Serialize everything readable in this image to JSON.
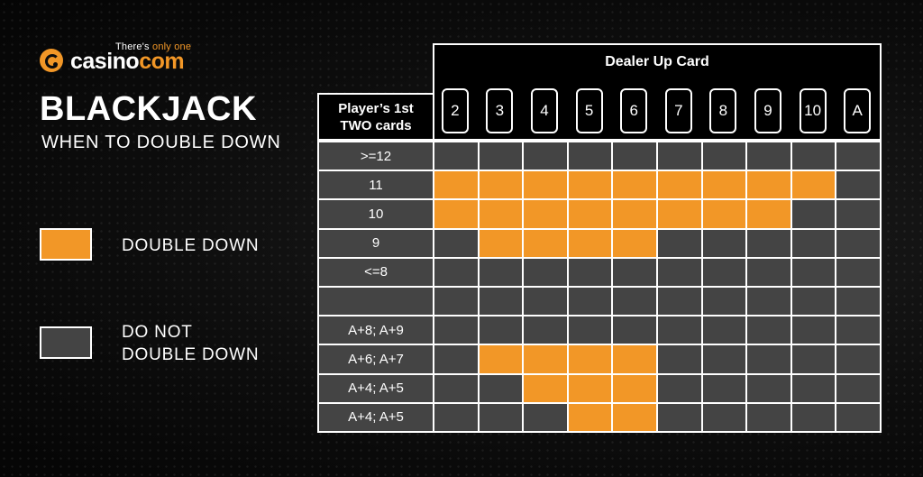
{
  "logo": {
    "tagline_prefix": "There's ",
    "tagline_highlight": "only one",
    "word_1": "casino",
    "word_2": "com"
  },
  "title": "BLACKJACK",
  "subtitle": "WHEN TO DOUBLE DOWN",
  "legend": {
    "double": "DOUBLE DOWN",
    "no_double_line1": "DO NOT",
    "no_double_line2": "DOUBLE DOWN"
  },
  "table": {
    "dealer_header": "Dealer Up Card",
    "player_header_line1": "Player’s 1st",
    "player_header_line2": "TWO cards",
    "dealer_cards": [
      "2",
      "3",
      "4",
      "5",
      "6",
      "7",
      "8",
      "9",
      "10",
      "A"
    ],
    "rows": [
      {
        "label": ">=12",
        "cells": [
          "N",
          "N",
          "N",
          "N",
          "N",
          "N",
          "N",
          "N",
          "N",
          "N"
        ]
      },
      {
        "label": "11",
        "cells": [
          "D",
          "D",
          "D",
          "D",
          "D",
          "D",
          "D",
          "D",
          "D",
          "N"
        ]
      },
      {
        "label": "10",
        "cells": [
          "D",
          "D",
          "D",
          "D",
          "D",
          "D",
          "D",
          "D",
          "N",
          "N"
        ]
      },
      {
        "label": "9",
        "cells": [
          "N",
          "D",
          "D",
          "D",
          "D",
          "N",
          "N",
          "N",
          "N",
          "N"
        ]
      },
      {
        "label": "<=8",
        "cells": [
          "N",
          "N",
          "N",
          "N",
          "N",
          "N",
          "N",
          "N",
          "N",
          "N"
        ]
      },
      {
        "label": "",
        "cells": [
          "N",
          "N",
          "N",
          "N",
          "N",
          "N",
          "N",
          "N",
          "N",
          "N"
        ]
      },
      {
        "label": "A+8; A+9",
        "cells": [
          "N",
          "N",
          "N",
          "N",
          "N",
          "N",
          "N",
          "N",
          "N",
          "N"
        ]
      },
      {
        "label": "A+6; A+7",
        "cells": [
          "N",
          "D",
          "D",
          "D",
          "D",
          "N",
          "N",
          "N",
          "N",
          "N"
        ]
      },
      {
        "label": "A+4; A+5",
        "cells": [
          "N",
          "N",
          "D",
          "D",
          "D",
          "N",
          "N",
          "N",
          "N",
          "N"
        ]
      },
      {
        "label": "A+4; A+5",
        "cells": [
          "N",
          "N",
          "N",
          "D",
          "D",
          "N",
          "N",
          "N",
          "N",
          "N"
        ]
      }
    ]
  },
  "colors": {
    "orange": "#f29727",
    "gray": "#444444"
  }
}
